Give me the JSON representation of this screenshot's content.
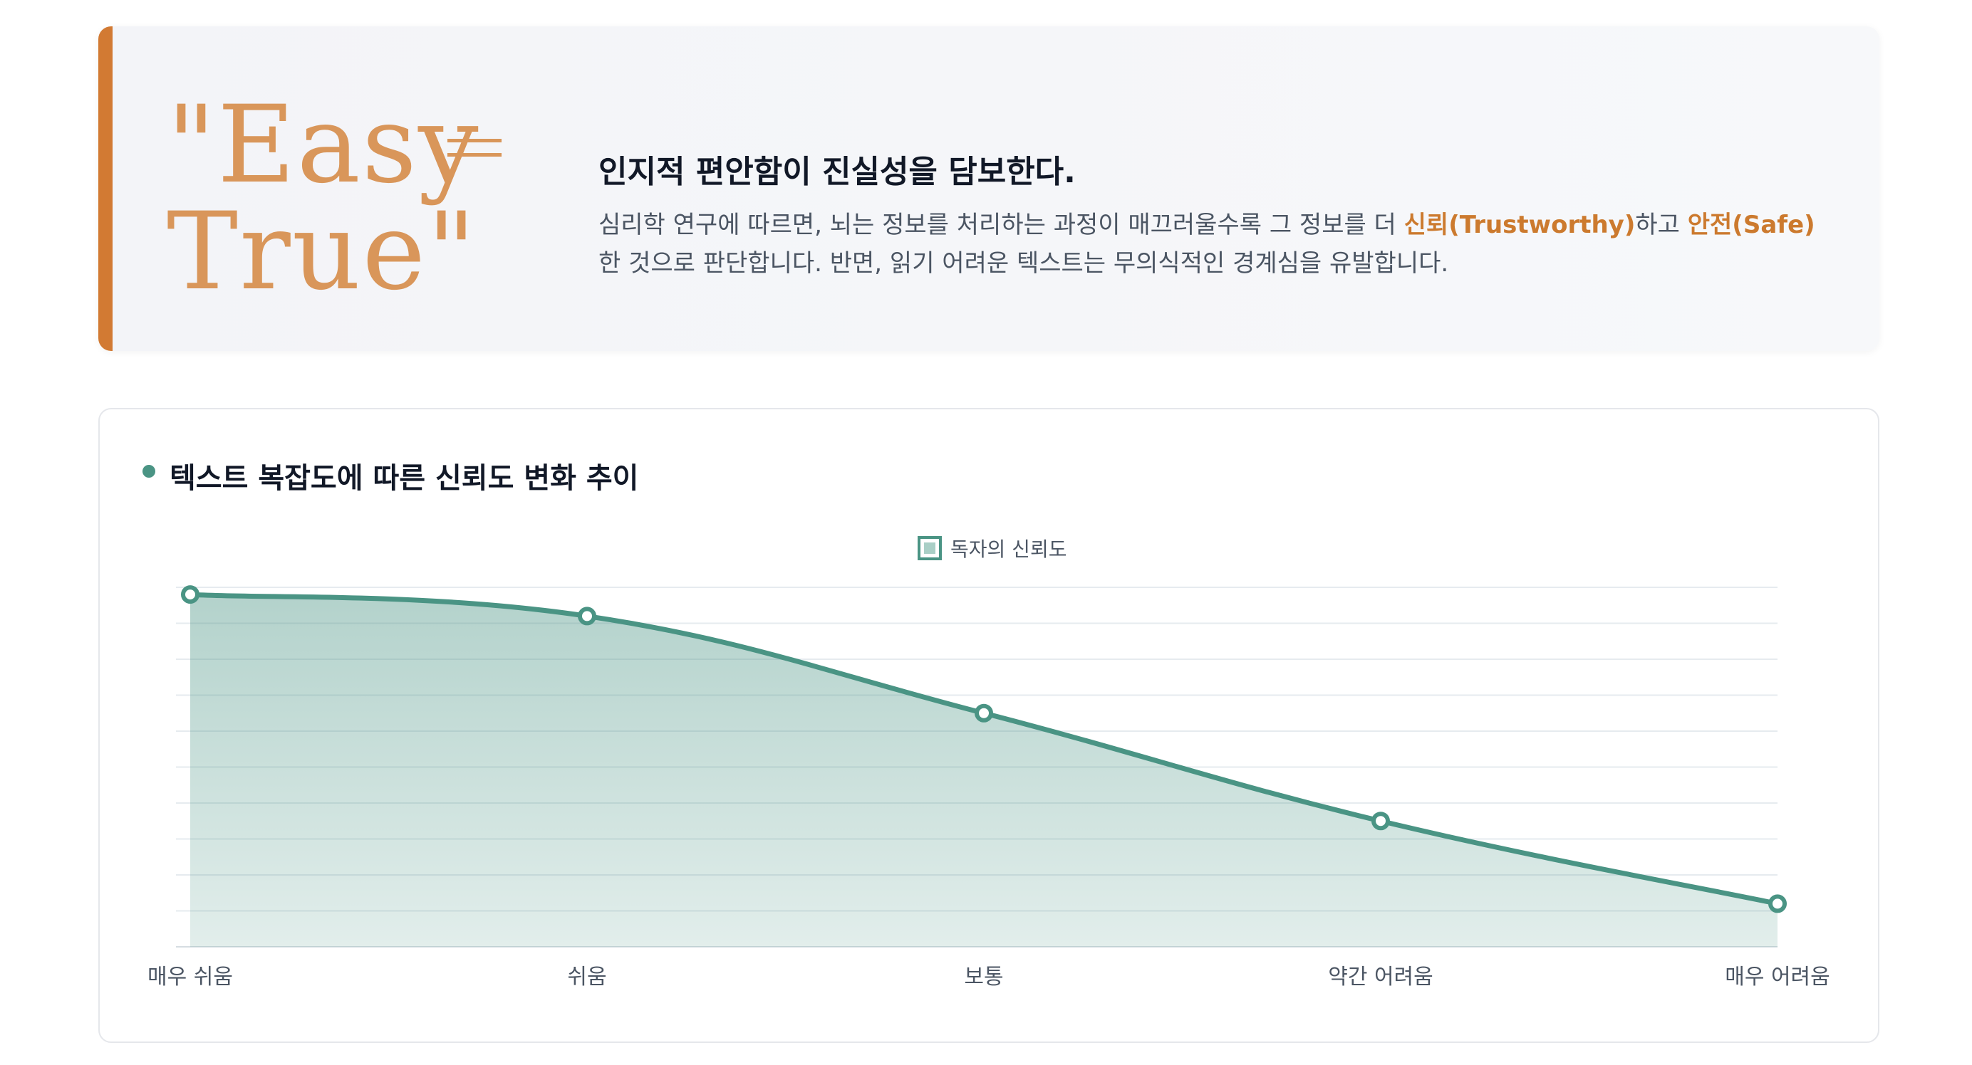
{
  "hero": {
    "quote_line1": "\"Easy",
    "quote_line2": "True\"",
    "heading": "인지적 편안함이 진실성을 담보한다.",
    "body_part1": "심리학 연구에 따르면, 뇌는 정보를 처리하는 과정이 매끄러울수록 그 정보를 더 ",
    "highlight1": "신뢰(Trustworthy)",
    "body_part2": "하고 ",
    "highlight2": "안전(Safe)",
    "body_part3": "한 것으로 판단합니다. 반면, 읽기 어려운 텍스트는 무의식적인 경계심을 유발합니다.",
    "accent_color": "#d27a33"
  },
  "chart_card": {
    "title": "텍스트 복잡도에 따른 신뢰도 변화 추이"
  },
  "chart_data": {
    "type": "area",
    "title": "텍스트 복잡도에 따른 신뢰도 변화 추이",
    "categories": [
      "매우 쉬움",
      "쉬움",
      "보통",
      "약간 어려움",
      "매우 어려움"
    ],
    "series": [
      {
        "name": "독자의 신뢰도",
        "values": [
          98,
          92,
          65,
          35,
          12
        ],
        "color": "#4a9484"
      }
    ],
    "ylim": [
      0,
      100
    ],
    "grid": true,
    "legend": "top-center",
    "y_ticks_shown": false
  }
}
